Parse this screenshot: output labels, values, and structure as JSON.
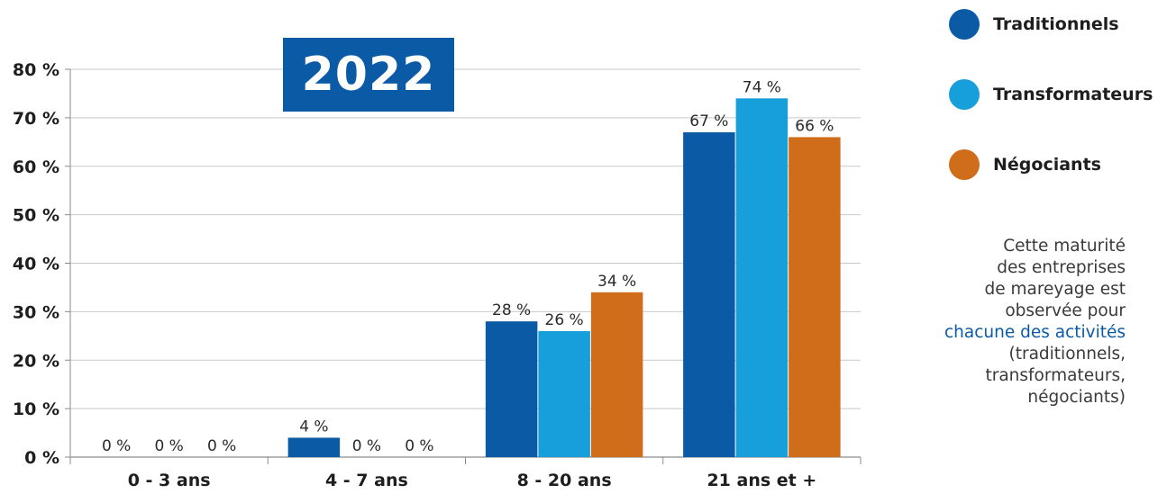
{
  "badge": {
    "year": "2022"
  },
  "legend": [
    {
      "label": "Traditionnels",
      "color": "#0b5aa6"
    },
    {
      "label": "Transformateurs",
      "color": "#169fdb"
    },
    {
      "label": "Négociants",
      "color": "#d06d1a"
    }
  ],
  "note": {
    "line1": "Cette maturité",
    "line2": "des entreprises",
    "line3": "de mareyage est",
    "line4": "observée pour",
    "highlight": "chacune des activités",
    "line5": "(traditionnels,",
    "line6": "transformateurs,",
    "line7": "négociants)",
    "highlight_color": "#0b5aa6"
  },
  "chart_data": {
    "type": "bar",
    "categories": [
      "0 - 3 ans",
      "4 - 7 ans",
      "8 - 20 ans",
      "21 ans et +"
    ],
    "series": [
      {
        "name": "Traditionnels",
        "values": [
          0,
          4,
          28,
          67
        ],
        "color": "#0b5aa6"
      },
      {
        "name": "Transformateurs",
        "values": [
          0,
          0,
          26,
          74
        ],
        "color": "#169fdb"
      },
      {
        "name": "Négociants",
        "values": [
          0,
          0,
          34,
          66
        ],
        "color": "#d06d1a"
      }
    ],
    "ylim": [
      0,
      80
    ],
    "yticks": [
      0,
      10,
      20,
      30,
      40,
      50,
      60,
      70,
      80
    ],
    "ytick_labels": [
      "0 %",
      "10 %",
      "20 %",
      "30 %",
      "40 %",
      "50 %",
      "60 %",
      "70 %",
      "80 %"
    ],
    "data_labels": [
      [
        "0 %",
        "4 %",
        "28 %",
        "67 %"
      ],
      [
        "0 %",
        "0 %",
        "26 %",
        "74 %"
      ],
      [
        "0 %",
        "0 %",
        "34 %",
        "66 %"
      ]
    ],
    "grid": true,
    "legend_position": "right",
    "title": "",
    "xlabel": "",
    "ylabel": ""
  }
}
